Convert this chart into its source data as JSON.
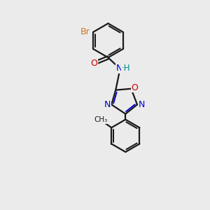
{
  "bg_color": "#ebebeb",
  "bond_color": "#1a1a1a",
  "bond_width": 1.6,
  "atom_colors": {
    "Br": "#cc7722",
    "O": "#cc0000",
    "N": "#0000cc",
    "H": "#008888",
    "C": "#1a1a1a"
  }
}
